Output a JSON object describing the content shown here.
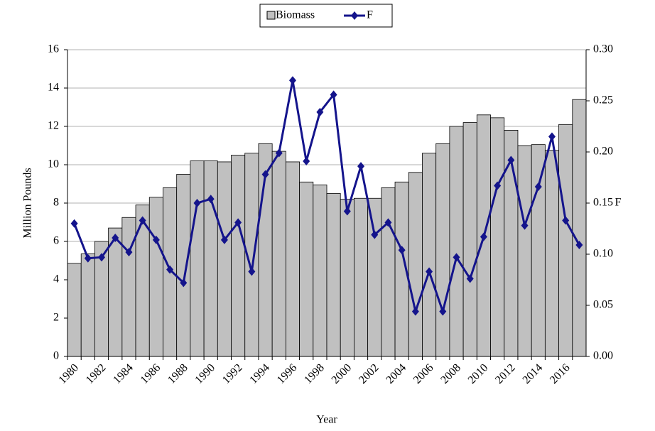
{
  "chart_data": {
    "type": "bar_line",
    "categories": [
      "1980",
      null,
      "1982",
      null,
      "1984",
      null,
      "1986",
      null,
      "1988",
      null,
      "1990",
      null,
      "1992",
      null,
      "1994",
      null,
      "1996",
      null,
      "1998",
      null,
      "2000",
      null,
      "2002",
      null,
      "2004",
      null,
      "2006",
      null,
      "2008",
      null,
      "2010",
      null,
      "2012",
      null,
      "2014",
      null,
      "2016",
      null
    ],
    "x_label": "Year",
    "y_label": "Million Pounds",
    "y2_label": "F",
    "series": [
      {
        "name": "Biomass",
        "color": "#c0c0c0",
        "values": [
          4.85,
          5.35,
          6.0,
          6.7,
          7.25,
          7.9,
          8.3,
          8.8,
          9.5,
          10.2,
          10.2,
          10.15,
          10.5,
          10.6,
          11.1,
          10.7,
          10.15,
          9.1,
          8.95,
          8.5,
          8.2,
          8.25,
          8.25,
          8.8,
          9.1,
          9.6,
          10.6,
          11.1,
          12.0,
          12.2,
          12.6,
          12.45,
          11.8,
          11.0,
          11.05,
          10.75,
          12.1,
          13.4
        ]
      },
      {
        "name": "F",
        "color": "#14148c",
        "axis": "y2",
        "values": [
          0.13,
          0.096,
          0.097,
          0.116,
          0.102,
          0.133,
          0.114,
          0.085,
          0.072,
          0.15,
          0.154,
          0.114,
          0.131,
          0.083,
          0.178,
          0.199,
          0.27,
          0.191,
          0.239,
          0.256,
          0.142,
          0.186,
          0.119,
          0.131,
          0.104,
          0.044,
          0.083,
          0.044,
          0.097,
          0.076,
          0.117,
          0.167,
          0.192,
          0.128,
          0.166,
          0.215,
          0.133,
          0.109
        ]
      }
    ],
    "ylim": [
      0,
      16
    ],
    "yticks": [
      0,
      2,
      4,
      6,
      8,
      10,
      12,
      14,
      16
    ],
    "y2lim": [
      0,
      0.3
    ],
    "y2ticks": [
      {
        "value": 0,
        "label": "0.00"
      },
      {
        "value": 0.05,
        "label": "0.05"
      },
      {
        "value": 0.1,
        "label": "0.10"
      },
      {
        "value": 0.15,
        "label": "0.15"
      },
      {
        "value": 0.2,
        "label": "0.20"
      },
      {
        "value": 0.25,
        "label": "0.25"
      },
      {
        "value": 0.3,
        "label": "0.30"
      }
    ],
    "grid": true,
    "legend": "top"
  }
}
